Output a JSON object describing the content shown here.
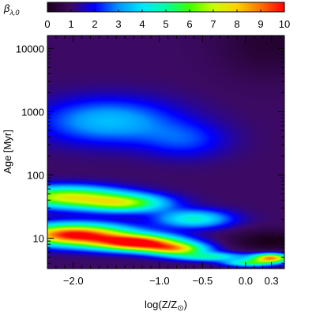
{
  "chart_data": {
    "type": "heatmap",
    "colorbar": {
      "label_symbol": "β",
      "label_subscript": "λ,0",
      "ticks": [
        "0",
        "1",
        "2",
        "3",
        "4",
        "5",
        "6",
        "7",
        "8",
        "9",
        "10"
      ],
      "range": [
        0,
        10
      ],
      "colormap": "rainbow (purple-blue-cyan-green-yellow-orange-red)"
    },
    "xlabel": {
      "prefix": "log(Z/Z",
      "subscript": "⊙",
      "suffix": ")"
    },
    "ylabel": {
      "text": "Age",
      "unit": "[Myr]"
    },
    "x_scale": "linear (log Z)",
    "y_scale": "log",
    "xlim": [
      -2.3,
      0.45
    ],
    "ylim": [
      3.3,
      16000
    ],
    "x_ticks": [
      {
        "value": -2.0,
        "label": "-2.0"
      },
      {
        "value": -1.0,
        "label": "-1.0"
      },
      {
        "value": -0.5,
        "label": "-0.5"
      },
      {
        "value": 0.0,
        "label": "0.0"
      },
      {
        "value": 0.3,
        "label": "0.3"
      }
    ],
    "y_ticks": [
      {
        "value": 10,
        "label": "10"
      },
      {
        "value": 100,
        "label": "100"
      },
      {
        "value": 1000,
        "label": "1000"
      },
      {
        "value": 10000,
        "label": "10000"
      }
    ],
    "x_minor_ticks": [
      -2.2,
      -2.1,
      -1.9,
      -1.8,
      -1.7,
      -1.6,
      -1.5,
      -1.4,
      -1.3,
      -1.2,
      -1.1,
      -0.9,
      -0.8,
      -0.7,
      -0.6,
      -0.4,
      -0.3,
      -0.2,
      -0.1,
      0.1,
      0.2,
      0.4
    ],
    "y_minor_ticks": [
      4,
      5,
      6,
      7,
      8,
      9,
      20,
      30,
      40,
      50,
      60,
      70,
      80,
      90,
      200,
      300,
      400,
      500,
      600,
      700,
      800,
      900,
      2000,
      3000,
      4000,
      5000,
      6000,
      7000,
      8000,
      9000
    ],
    "grid": false,
    "value_model": {
      "description": "Approximate beta values read from the color map; features in (log Z, log10 Age) with value peaks",
      "background": 1.0,
      "features": [
        {
          "x": -2.0,
          "logt": 1.05,
          "sx": 0.45,
          "sy": 0.12,
          "amp": 9.0
        },
        {
          "x": -1.25,
          "logt": 0.92,
          "sx": 0.35,
          "sy": 0.09,
          "amp": 8.5
        },
        {
          "x": -0.8,
          "logt": 0.82,
          "sx": 0.25,
          "sy": 0.07,
          "amp": 5.5
        },
        {
          "x": -2.1,
          "logt": 1.65,
          "sx": 0.45,
          "sy": 0.12,
          "amp": 6.0
        },
        {
          "x": -1.4,
          "logt": 1.55,
          "sx": 0.35,
          "sy": 0.1,
          "amp": 5.0
        },
        {
          "x": -0.6,
          "logt": 1.3,
          "sx": 0.3,
          "sy": 0.1,
          "amp": 3.5
        },
        {
          "x": -1.6,
          "logt": 2.85,
          "sx": 0.55,
          "sy": 0.25,
          "amp": 2.5
        },
        {
          "x": -0.7,
          "logt": 2.55,
          "sx": 0.35,
          "sy": 0.2,
          "amp": 1.3
        },
        {
          "x": -0.4,
          "logt": 0.7,
          "sx": 0.3,
          "sy": 0.05,
          "amp": 3.5
        },
        {
          "x": 0.3,
          "logt": 0.68,
          "sx": 0.15,
          "sy": 0.05,
          "amp": 7.5
        },
        {
          "x": 0.05,
          "logt": 0.6,
          "sx": 0.2,
          "sy": 0.04,
          "amp": 4.0
        }
      ],
      "dark_regions": [
        {
          "x": 0.3,
          "logt": 0.95,
          "sx": 0.35,
          "sy": 0.12,
          "amp": -1.0
        },
        {
          "x": 0.3,
          "logt": 4.1,
          "sx": 0.45,
          "sy": 0.4,
          "amp": -0.7
        }
      ]
    }
  }
}
